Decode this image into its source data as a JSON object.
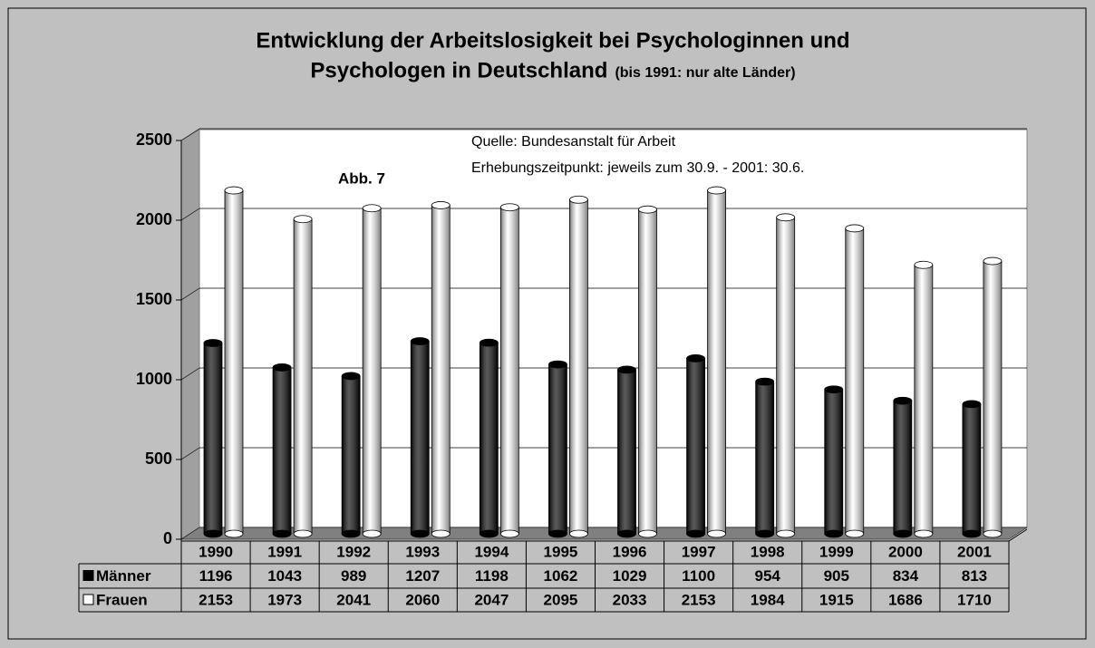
{
  "chart_data": {
    "type": "bar",
    "title": [
      "Entwicklung der Arbeitslosigkeit bei Psychologinnen und",
      "Psychologen in Deutschland"
    ],
    "subtitle": "(bis 1991: nur alte Länder)",
    "annotations": [
      "Quelle: Bundesanstalt für Arbeit",
      "Erhebungszeitpunkt: jeweils zum 30.9. - 2001: 30.6.",
      "Abb. 7"
    ],
    "categories": [
      "1990",
      "1991",
      "1992",
      "1993",
      "1994",
      "1995",
      "1996",
      "1997",
      "1998",
      "1999",
      "2000",
      "2001"
    ],
    "series": [
      {
        "name": "Männer",
        "color": "#000000",
        "values": [
          1196,
          1043,
          989,
          1207,
          1198,
          1062,
          1029,
          1100,
          954,
          905,
          834,
          813
        ]
      },
      {
        "name": "Frauen",
        "color": "#ffffff",
        "values": [
          2153,
          1973,
          2041,
          2060,
          2047,
          2095,
          2033,
          2153,
          1984,
          1915,
          1686,
          1710
        ]
      }
    ],
    "ylim": [
      0,
      2500
    ],
    "yticks": [
      0,
      500,
      1000,
      1500,
      2000,
      2500
    ],
    "grid": true,
    "legend": "bottom"
  }
}
